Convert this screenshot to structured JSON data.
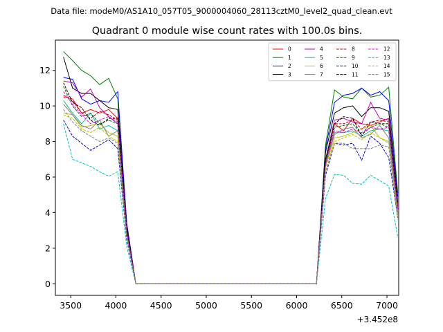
{
  "chart_data": {
    "type": "line",
    "suptitle": "Data file: modeM0/AS1A10_057T05_9000004060_28113cztM0_level2_quad_clean.evt",
    "title": "Quadrant 0 module wise count rates with 100.0s bins.",
    "xlabel": "",
    "ylabel": "",
    "x_offset_label": "+3.452e8",
    "xlim": [
      3330,
      7130
    ],
    "ylim": [
      -0.65,
      13.7
    ],
    "xticks": [
      3500,
      4000,
      4500,
      5000,
      5500,
      6000,
      6500,
      7000
    ],
    "yticks": [
      0,
      2,
      4,
      6,
      8,
      10,
      12
    ],
    "x": [
      3420,
      3520,
      3620,
      3720,
      3820,
      3920,
      4020,
      4120,
      4220,
      4320,
      4420,
      4520,
      4620,
      4720,
      4820,
      4920,
      5020,
      5120,
      5220,
      5320,
      5420,
      5520,
      5620,
      5720,
      5820,
      5920,
      6020,
      6120,
      6220,
      6320,
      6420,
      6520,
      6620,
      6720,
      6820,
      6920,
      7020,
      7120
    ],
    "legend": {
      "location": "upper right",
      "columns": 4
    },
    "series": [
      {
        "name": "0",
        "color": "#ff0000",
        "style": "solid",
        "values": [
          10.5,
          10.4,
          9.6,
          9.8,
          9.6,
          9.8,
          9.3,
          3.0,
          0.0,
          0.0,
          0.0,
          0.0,
          0.0,
          0.0,
          0.0,
          0.0,
          0.0,
          0.0,
          0.0,
          0.0,
          0.0,
          0.0,
          0.0,
          0.0,
          0.0,
          0.0,
          0.0,
          0.0,
          0.0,
          6.8,
          9.0,
          8.6,
          9.3,
          9.0,
          8.9,
          9.1,
          9.3,
          4.3
        ]
      },
      {
        "name": "1",
        "color": "#008000",
        "style": "solid",
        "values": [
          13.05,
          12.55,
          12.0,
          11.7,
          11.2,
          11.55,
          10.4,
          3.4,
          0.0,
          0.0,
          0.0,
          0.0,
          0.0,
          0.0,
          0.0,
          0.0,
          0.0,
          0.0,
          0.0,
          0.0,
          0.0,
          0.0,
          0.0,
          0.0,
          0.0,
          0.0,
          0.0,
          0.0,
          0.0,
          7.8,
          10.9,
          10.5,
          10.4,
          11.0,
          10.5,
          10.6,
          11.05,
          5.1
        ]
      },
      {
        "name": "2",
        "color": "#0000ff",
        "style": "solid",
        "values": [
          11.6,
          11.5,
          10.4,
          10.1,
          10.3,
          10.2,
          10.8,
          3.4,
          0.0,
          0.0,
          0.0,
          0.0,
          0.0,
          0.0,
          0.0,
          0.0,
          0.0,
          0.0,
          0.0,
          0.0,
          0.0,
          0.0,
          0.0,
          0.0,
          0.0,
          0.0,
          0.0,
          0.0,
          0.0,
          7.6,
          10.2,
          10.6,
          10.7,
          11.0,
          10.6,
          10.8,
          10.3,
          4.9
        ]
      },
      {
        "name": "3",
        "color": "#000000",
        "style": "solid",
        "values": [
          12.75,
          11.0,
          10.7,
          10.7,
          10.3,
          9.9,
          9.8,
          3.2,
          0.0,
          0.0,
          0.0,
          0.0,
          0.0,
          0.0,
          0.0,
          0.0,
          0.0,
          0.0,
          0.0,
          0.0,
          0.0,
          0.0,
          0.0,
          0.0,
          0.0,
          0.0,
          0.0,
          0.0,
          0.0,
          7.4,
          9.6,
          9.9,
          10.0,
          9.4,
          9.9,
          9.9,
          9.7,
          4.6
        ]
      },
      {
        "name": "4",
        "color": "#bf00bf",
        "style": "solid",
        "values": [
          11.4,
          11.3,
          10.5,
          10.95,
          9.9,
          9.4,
          9.0,
          3.0,
          0.0,
          0.0,
          0.0,
          0.0,
          0.0,
          0.0,
          0.0,
          0.0,
          0.0,
          0.0,
          0.0,
          0.0,
          0.0,
          0.0,
          0.0,
          0.0,
          0.0,
          0.0,
          0.0,
          0.0,
          0.0,
          7.0,
          9.2,
          9.3,
          9.1,
          9.0,
          10.2,
          9.3,
          9.2,
          4.4
        ]
      },
      {
        "name": "5",
        "color": "#00bfa0",
        "style": "solid",
        "values": [
          10.3,
          9.6,
          9.0,
          9.6,
          8.7,
          8.9,
          8.6,
          2.9,
          0.0,
          0.0,
          0.0,
          0.0,
          0.0,
          0.0,
          0.0,
          0.0,
          0.0,
          0.0,
          0.0,
          0.0,
          0.0,
          0.0,
          0.0,
          0.0,
          0.0,
          0.0,
          0.0,
          0.0,
          0.0,
          6.9,
          8.5,
          8.5,
          8.6,
          8.3,
          8.6,
          8.7,
          8.6,
          4.2
        ]
      },
      {
        "name": "6",
        "color": "#bfbf00",
        "style": "solid",
        "values": [
          9.6,
          9.5,
          8.8,
          8.9,
          9.0,
          8.5,
          8.3,
          2.8,
          0.0,
          0.0,
          0.0,
          0.0,
          0.0,
          0.0,
          0.0,
          0.0,
          0.0,
          0.0,
          0.0,
          0.0,
          0.0,
          0.0,
          0.0,
          0.0,
          0.0,
          0.0,
          0.0,
          0.0,
          0.0,
          6.6,
          8.2,
          8.3,
          8.5,
          8.7,
          8.9,
          8.2,
          8.0,
          3.9
        ]
      },
      {
        "name": "7",
        "color": "#808080",
        "style": "solid",
        "values": [
          10.1,
          9.5,
          8.9,
          8.7,
          9.2,
          8.3,
          8.6,
          2.8,
          0.0,
          0.0,
          0.0,
          0.0,
          0.0,
          0.0,
          0.0,
          0.0,
          0.0,
          0.0,
          0.0,
          0.0,
          0.0,
          0.0,
          0.0,
          0.0,
          0.0,
          0.0,
          0.0,
          0.0,
          0.0,
          6.7,
          8.4,
          8.7,
          8.8,
          8.2,
          8.4,
          8.9,
          8.2,
          4.0
        ]
      },
      {
        "name": "8",
        "color": "#c00000",
        "style": "dashed",
        "values": [
          10.6,
          10.3,
          9.6,
          9.3,
          9.7,
          9.5,
          9.2,
          3.0,
          0.0,
          0.0,
          0.0,
          0.0,
          0.0,
          0.0,
          0.0,
          0.0,
          0.0,
          0.0,
          0.0,
          0.0,
          0.0,
          0.0,
          0.0,
          0.0,
          0.0,
          0.0,
          0.0,
          0.0,
          0.0,
          6.9,
          9.0,
          9.0,
          9.2,
          8.7,
          9.1,
          9.2,
          9.1,
          4.3
        ]
      },
      {
        "name": "9",
        "color": "#006400",
        "style": "dashed",
        "values": [
          11.1,
          10.0,
          9.4,
          9.6,
          9.0,
          9.2,
          9.0,
          2.9,
          0.0,
          0.0,
          0.0,
          0.0,
          0.0,
          0.0,
          0.0,
          0.0,
          0.0,
          0.0,
          0.0,
          0.0,
          0.0,
          0.0,
          0.0,
          0.0,
          0.0,
          0.0,
          0.0,
          0.0,
          0.0,
          6.8,
          8.8,
          8.9,
          9.0,
          8.4,
          8.8,
          9.0,
          8.8,
          4.2
        ]
      },
      {
        "name": "10",
        "color": "#0000cd",
        "style": "dashed",
        "values": [
          9.2,
          8.3,
          7.9,
          7.5,
          7.8,
          8.1,
          7.6,
          2.5,
          0.0,
          0.0,
          0.0,
          0.0,
          0.0,
          0.0,
          0.0,
          0.0,
          0.0,
          0.0,
          0.0,
          0.0,
          0.0,
          0.0,
          0.0,
          0.0,
          0.0,
          0.0,
          0.0,
          0.0,
          0.0,
          6.1,
          7.9,
          7.8,
          7.9,
          6.95,
          8.3,
          7.9,
          7.1,
          3.7
        ]
      },
      {
        "name": "11",
        "color": "#000000",
        "style": "dashed",
        "values": [
          11.3,
          10.2,
          9.9,
          9.2,
          8.9,
          9.3,
          9.3,
          3.0,
          0.0,
          0.0,
          0.0,
          0.0,
          0.0,
          0.0,
          0.0,
          0.0,
          0.0,
          0.0,
          0.0,
          0.0,
          0.0,
          0.0,
          0.0,
          0.0,
          0.0,
          0.0,
          0.0,
          0.0,
          0.0,
          7.0,
          9.0,
          9.4,
          9.3,
          8.3,
          9.1,
          9.0,
          9.0,
          4.4
        ]
      },
      {
        "name": "12",
        "color": "#ff00ff",
        "style": "dashed",
        "values": [
          10.8,
          10.1,
          9.5,
          9.0,
          9.2,
          9.4,
          9.1,
          2.9,
          0.0,
          0.0,
          0.0,
          0.0,
          0.0,
          0.0,
          0.0,
          0.0,
          0.0,
          0.0,
          0.0,
          0.0,
          0.0,
          0.0,
          0.0,
          0.0,
          0.0,
          0.0,
          0.0,
          0.0,
          0.0,
          6.7,
          8.6,
          8.5,
          8.7,
          8.5,
          8.8,
          8.7,
          8.8,
          4.2
        ]
      },
      {
        "name": "13",
        "color": "#00bfbf",
        "style": "dashed",
        "values": [
          9.0,
          7.0,
          6.8,
          6.6,
          6.3,
          6.05,
          6.3,
          2.1,
          0.0,
          0.0,
          0.0,
          0.0,
          0.0,
          0.0,
          0.0,
          0.0,
          0.0,
          0.0,
          0.0,
          0.0,
          0.0,
          0.0,
          0.0,
          0.0,
          0.0,
          0.0,
          0.0,
          0.0,
          0.0,
          4.8,
          6.15,
          6.1,
          5.65,
          5.6,
          6.1,
          5.8,
          5.5,
          2.6
        ]
      },
      {
        "name": "14",
        "color": "#bfbf00",
        "style": "dashed",
        "values": [
          9.5,
          9.3,
          8.7,
          8.5,
          8.8,
          8.3,
          8.0,
          2.7,
          0.0,
          0.0,
          0.0,
          0.0,
          0.0,
          0.0,
          0.0,
          0.0,
          0.0,
          0.0,
          0.0,
          0.0,
          0.0,
          0.0,
          0.0,
          0.0,
          0.0,
          0.0,
          0.0,
          0.0,
          0.0,
          6.5,
          8.0,
          8.2,
          8.4,
          8.1,
          8.5,
          8.2,
          7.9,
          3.8
        ]
      },
      {
        "name": "15",
        "color": "#808080",
        "style": "dashed",
        "values": [
          9.8,
          9.1,
          8.6,
          8.3,
          8.0,
          8.2,
          7.9,
          2.6,
          0.0,
          0.0,
          0.0,
          0.0,
          0.0,
          0.0,
          0.0,
          0.0,
          0.0,
          0.0,
          0.0,
          0.0,
          0.0,
          0.0,
          0.0,
          0.0,
          0.0,
          0.0,
          0.0,
          0.0,
          0.0,
          6.3,
          7.9,
          7.9,
          7.6,
          7.6,
          7.6,
          7.8,
          7.7,
          3.6
        ]
      }
    ]
  }
}
